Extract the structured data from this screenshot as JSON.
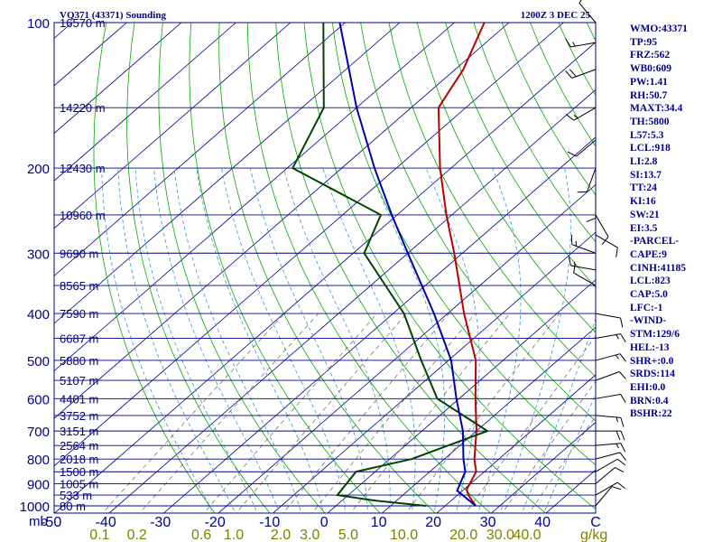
{
  "header": {
    "station": "VQ371 (43371) Sounding",
    "time": "1200Z  3 DEC 25"
  },
  "chart_data": {
    "type": "skew-t",
    "pressure_axis": {
      "unit_label": "mb",
      "ticks": [
        100,
        200,
        300,
        400,
        500,
        600,
        700,
        800,
        900,
        1000
      ],
      "ylim": [
        1050,
        100
      ],
      "scale": "log"
    },
    "temperature_axis": {
      "ticks": [
        "-50",
        "-40",
        "-30",
        "-20",
        "-10",
        "0",
        "10",
        "20",
        "30",
        "40",
        "C"
      ],
      "xlim": [
        -50,
        50
      ]
    },
    "mixing_ratio_axis": {
      "ticks": [
        "0.1",
        "0.2",
        "0.6",
        "1.0",
        "2.0",
        "3.0",
        "5.0",
        "10.0",
        "20.0",
        "30.0",
        "40.0"
      ],
      "unit_label": "g/kg"
    },
    "height_labels": [
      {
        "p": 100,
        "label": "16570 m"
      },
      {
        "p": 150,
        "label": "14220 m"
      },
      {
        "p": 200,
        "label": "12430 m"
      },
      {
        "p": 250,
        "label": "10960 m"
      },
      {
        "p": 300,
        "label": "9690 m"
      },
      {
        "p": 350,
        "label": "8565 m"
      },
      {
        "p": 400,
        "label": "7590 m"
      },
      {
        "p": 450,
        "label": "6687 m"
      },
      {
        "p": 500,
        "label": "5880 m"
      },
      {
        "p": 550,
        "label": "5107 m"
      },
      {
        "p": 600,
        "label": "4401 m"
      },
      {
        "p": 650,
        "label": "3752 m"
      },
      {
        "p": 700,
        "label": "3151 m"
      },
      {
        "p": 750,
        "label": "2564 m"
      },
      {
        "p": 800,
        "label": "2018 m"
      },
      {
        "p": 850,
        "label": "1500 m"
      },
      {
        "p": 900,
        "label": "1005 m"
      },
      {
        "p": 950,
        "label": "533 m"
      },
      {
        "p": 1000,
        "label": "80 m"
      }
    ],
    "series": [
      {
        "key": "temperature",
        "color": "#bb0000",
        "points": [
          {
            "p": 1000,
            "t": 25.6
          },
          {
            "p": 950,
            "t": 22.0
          },
          {
            "p": 925,
            "t": 20.5
          },
          {
            "p": 850,
            "t": 18.5
          },
          {
            "p": 800,
            "t": 15.5
          },
          {
            "p": 700,
            "t": 10.0
          },
          {
            "p": 600,
            "t": 3.0
          },
          {
            "p": 500,
            "t": -5.0
          },
          {
            "p": 400,
            "t": -17.0
          },
          {
            "p": 300,
            "t": -31.5
          },
          {
            "p": 250,
            "t": -41.0
          },
          {
            "p": 200,
            "t": -52.0
          },
          {
            "p": 150,
            "t": -65.0
          },
          {
            "p": 125,
            "t": -68.5
          },
          {
            "p": 100,
            "t": -74.5
          }
        ]
      },
      {
        "key": "dewpoint",
        "color": "#004400",
        "points": [
          {
            "p": 1000,
            "t": 16.5
          },
          {
            "p": 975,
            "t": 6.0
          },
          {
            "p": 950,
            "t": -2.0
          },
          {
            "p": 850,
            "t": -3.5
          },
          {
            "p": 800,
            "t": 4.0
          },
          {
            "p": 700,
            "t": 12.0
          },
          {
            "p": 600,
            "t": -4.0
          },
          {
            "p": 500,
            "t": -15.0
          },
          {
            "p": 400,
            "t": -28.0
          },
          {
            "p": 300,
            "t": -48.0
          },
          {
            "p": 250,
            "t": -53.0
          },
          {
            "p": 200,
            "t": -79.0
          },
          {
            "p": 150,
            "t": -86.0
          },
          {
            "p": 100,
            "t": -104.0
          }
        ]
      },
      {
        "key": "parcel",
        "color": "#0000aa",
        "points": [
          {
            "p": 1000,
            "t": 25.6
          },
          {
            "p": 930,
            "t": 19.0
          },
          {
            "p": 850,
            "t": 16.5
          },
          {
            "p": 800,
            "t": 13.5
          },
          {
            "p": 700,
            "t": 7.5
          },
          {
            "p": 600,
            "t": -0.5
          },
          {
            "p": 500,
            "t": -9.5
          },
          {
            "p": 400,
            "t": -22.5
          },
          {
            "p": 300,
            "t": -40.0
          },
          {
            "p": 250,
            "t": -51.0
          },
          {
            "p": 200,
            "t": -64.0
          },
          {
            "p": 150,
            "t": -80.0
          },
          {
            "p": 100,
            "t": -101.0
          }
        ]
      }
    ],
    "wind_barbs": [
      {
        "p": 100,
        "dir": 320,
        "spd": 5
      },
      {
        "p": 110,
        "dir": 260,
        "spd": 15
      },
      {
        "p": 125,
        "dir": 250,
        "spd": 20
      },
      {
        "p": 150,
        "dir": 240,
        "spd": 15
      },
      {
        "p": 175,
        "dir": 230,
        "spd": 10
      },
      {
        "p": 200,
        "dir": 200,
        "spd": 10
      },
      {
        "p": 225,
        "dir": 180,
        "spd": 10
      },
      {
        "p": 250,
        "dir": 150,
        "spd": 10
      },
      {
        "p": 275,
        "dir": 120,
        "spd": 10
      },
      {
        "p": 300,
        "dir": 290,
        "spd": 15
      },
      {
        "p": 325,
        "dir": 280,
        "spd": 15
      },
      {
        "p": 350,
        "dir": 300,
        "spd": 10
      },
      {
        "p": 400,
        "dir": 100,
        "spd": 10
      },
      {
        "p": 450,
        "dir": 80,
        "spd": 15
      },
      {
        "p": 500,
        "dir": 75,
        "spd": 15
      },
      {
        "p": 550,
        "dir": 70,
        "spd": 10
      },
      {
        "p": 600,
        "dir": 80,
        "spd": 10
      },
      {
        "p": 650,
        "dir": 95,
        "spd": 15
      },
      {
        "p": 700,
        "dir": 90,
        "spd": 20
      },
      {
        "p": 750,
        "dir": 85,
        "spd": 15
      },
      {
        "p": 800,
        "dir": 75,
        "spd": 10
      },
      {
        "p": 850,
        "dir": 60,
        "spd": 10
      },
      {
        "p": 900,
        "dir": 50,
        "spd": 10
      },
      {
        "p": 950,
        "dir": 60,
        "spd": 10
      },
      {
        "p": 1000,
        "dir": 40,
        "spd": 10
      }
    ]
  },
  "indices": [
    "WMO:43371",
    "TP:95",
    "FRZ:562",
    "WB0:609",
    "PW:1.41",
    "RH:50.7",
    "MAXT:34.4",
    "TH:5800",
    "L57:5.3",
    "LCL:918",
    "LI:2.8",
    "SI:13.7",
    "TT:24",
    "KI:16",
    "SW:21",
    "EI:3.5",
    "-PARCEL-",
    "CAPE:9",
    "CINH:41185",
    "LCL:823",
    "CAP:5.0",
    "LFC:-1",
    "-WIND-",
    "STM:129/6",
    "HEL:-13",
    "SHR+:0.0",
    "SRDS:114",
    "EHI:0.0",
    "BRN:0.4",
    "BSHR:22"
  ],
  "colors": {
    "frame": "#00008b",
    "isotherm": "#000088",
    "dry_adiabat": "#00aa00",
    "moist_adiabat": "#3399cc",
    "mixing_ratio": "#666655",
    "mixing_ratio_labels": "#808000"
  }
}
